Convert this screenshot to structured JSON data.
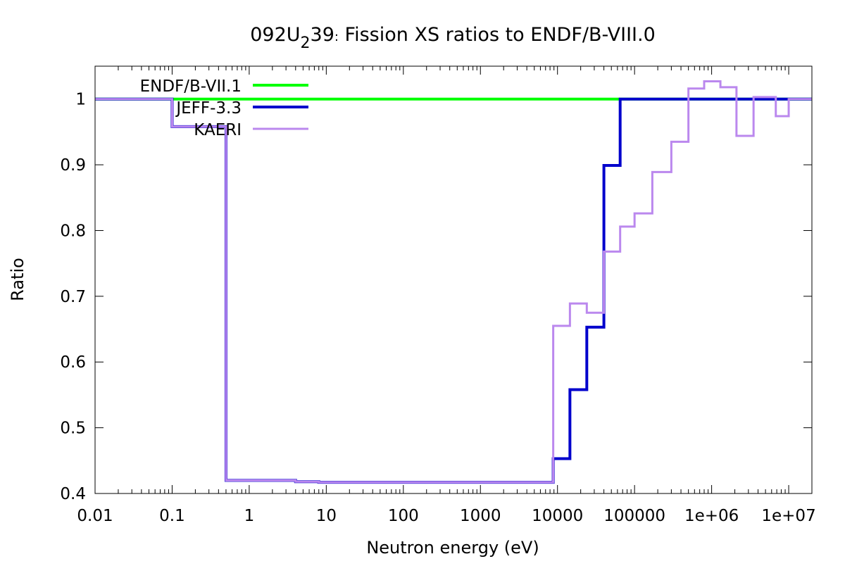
{
  "chart_data": {
    "type": "line",
    "step": true,
    "title_parts": {
      "pre": "092U",
      "sub": "2",
      "post": "39",
      "punct": ":",
      "rest": " Fission XS ratios to ENDF/B-VIII.0"
    },
    "xlabel": "Neutron energy (eV)",
    "ylabel": "Ratio",
    "xscale": "log",
    "xlim": [
      0.01,
      20000000
    ],
    "ylim": [
      0.4,
      1.05
    ],
    "xticks": [
      {
        "v": 0.01,
        "label": "0.01"
      },
      {
        "v": 0.1,
        "label": "0.1"
      },
      {
        "v": 1,
        "label": "1"
      },
      {
        "v": 10,
        "label": "10"
      },
      {
        "v": 100,
        "label": "100"
      },
      {
        "v": 1000,
        "label": "1000"
      },
      {
        "v": 10000,
        "label": "10000"
      },
      {
        "v": 100000,
        "label": "100000"
      },
      {
        "v": 1000000,
        "label": "1e+06"
      },
      {
        "v": 10000000,
        "label": "1e+07"
      }
    ],
    "yticks": [
      {
        "v": 0.4,
        "label": "0.4"
      },
      {
        "v": 0.5,
        "label": "0.5"
      },
      {
        "v": 0.6,
        "label": "0.6"
      },
      {
        "v": 0.7,
        "label": "0.7"
      },
      {
        "v": 0.8,
        "label": "0.8"
      },
      {
        "v": 0.9,
        "label": "0.9"
      },
      {
        "v": 1.0,
        "label": "1"
      }
    ],
    "grid": false,
    "legend_position": "top-left",
    "series": [
      {
        "name": "ENDF/B-VII.1",
        "color": "#00ff00",
        "width": 4,
        "points": [
          [
            0.01,
            1.0
          ],
          [
            20000000,
            1.0
          ]
        ]
      },
      {
        "name": "JEFF-3.3",
        "color": "#0000cc",
        "width": 4,
        "points": [
          [
            0.01,
            1.0
          ],
          [
            0.1,
            0.958
          ],
          [
            0.5,
            0.42
          ],
          [
            4,
            0.418
          ],
          [
            8,
            0.417
          ],
          [
            8800,
            0.453
          ],
          [
            14500,
            0.558
          ],
          [
            24000,
            0.653
          ],
          [
            40000,
            0.899
          ],
          [
            65000,
            1.0
          ],
          [
            20000000,
            1.0
          ]
        ]
      },
      {
        "name": "KAERI",
        "color": "#bb88ee",
        "width": 3,
        "points": [
          [
            0.01,
            1.0
          ],
          [
            0.1,
            0.958
          ],
          [
            0.5,
            0.42
          ],
          [
            4,
            0.418
          ],
          [
            8,
            0.417
          ],
          [
            8800,
            0.655
          ],
          [
            14500,
            0.689
          ],
          [
            24000,
            0.675
          ],
          [
            40000,
            0.768
          ],
          [
            65000,
            0.806
          ],
          [
            100000,
            0.826
          ],
          [
            170000,
            0.889
          ],
          [
            300000,
            0.935
          ],
          [
            500000,
            1.016
          ],
          [
            800000,
            1.027
          ],
          [
            1300000,
            1.018
          ],
          [
            2100000,
            0.944
          ],
          [
            3500000,
            1.003
          ],
          [
            6800000,
            0.974
          ],
          [
            10000000,
            1.0
          ],
          [
            20000000,
            1.0
          ]
        ]
      }
    ]
  }
}
